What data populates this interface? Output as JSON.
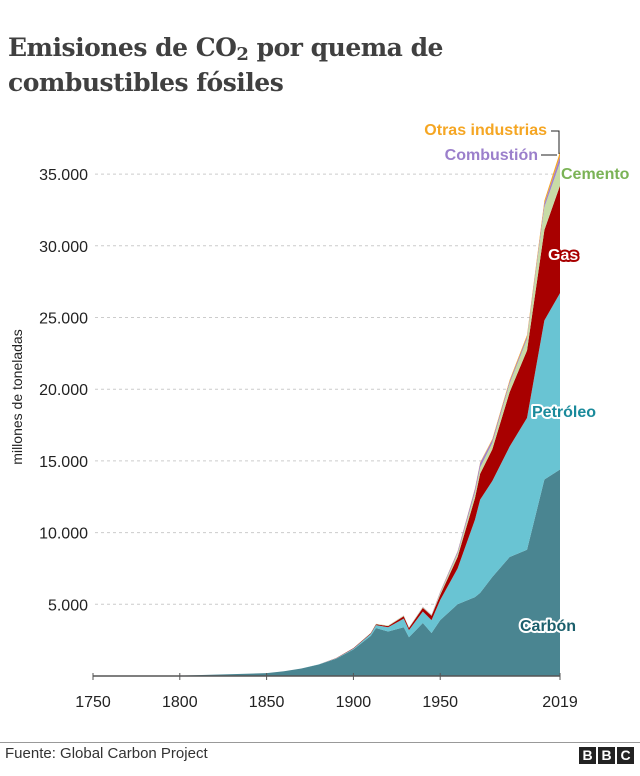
{
  "title": {
    "main": "Emisiones de CO",
    "sub": "2",
    "rest": " por quema de combustibles fósiles"
  },
  "footer": {
    "source": "Fuente: Global Carbon Project",
    "logo": "BBC"
  },
  "chart_data": {
    "type": "area",
    "stacked": true,
    "ylabel": "millones de toneladas",
    "xlabel": "",
    "xlim": [
      1750,
      2019
    ],
    "ylim": [
      0,
      36500
    ],
    "grid": true,
    "x_ticks": [
      "1750",
      "1800",
      "1850",
      "1900",
      "1950",
      "2019"
    ],
    "x_tick_values": [
      1750,
      1800,
      1850,
      1900,
      1950,
      2019
    ],
    "y_ticks": [
      "5.000",
      "10.000",
      "15.000",
      "20.000",
      "25.000",
      "30.000",
      "35.000"
    ],
    "y_tick_values": [
      5000,
      10000,
      15000,
      20000,
      25000,
      30000,
      35000
    ],
    "x": [
      1750,
      1800,
      1850,
      1860,
      1870,
      1880,
      1890,
      1900,
      1910,
      1913,
      1920,
      1929,
      1932,
      1940,
      1945,
      1950,
      1960,
      1970,
      1973,
      1980,
      1990,
      2000,
      2010,
      2019
    ],
    "series": [
      {
        "name": "Carbón",
        "color": "#4a8591",
        "values": [
          9,
          28,
          197,
          330,
          520,
          800,
          1200,
          1850,
          2800,
          3350,
          3100,
          3400,
          2700,
          3700,
          3000,
          3900,
          5000,
          5500,
          5800,
          6900,
          8300,
          8800,
          13700,
          14400
        ]
      },
      {
        "name": "Petróleo",
        "color": "#69c4d3",
        "values": [
          0,
          0,
          0,
          0,
          2,
          10,
          30,
          60,
          140,
          200,
          300,
          600,
          500,
          800,
          900,
          1400,
          2500,
          5400,
          6500,
          6700,
          7700,
          9200,
          11100,
          12300
        ]
      },
      {
        "name": "Gas",
        "color": "#a80000",
        "values": [
          0,
          0,
          0,
          0,
          0,
          5,
          15,
          30,
          50,
          60,
          80,
          170,
          150,
          250,
          300,
          350,
          800,
          1500,
          1800,
          2200,
          3800,
          4700,
          6300,
          7500
        ]
      },
      {
        "name": "Cemento",
        "color": "#c8dba6",
        "values": [
          0,
          0,
          0,
          0,
          0,
          0,
          0,
          5,
          20,
          30,
          40,
          50,
          40,
          60,
          50,
          140,
          250,
          400,
          450,
          450,
          600,
          800,
          1600,
          1600
        ]
      },
      {
        "name": "Combustión",
        "color": "#9f80cc",
        "values": [
          0,
          0,
          0,
          0,
          0,
          0,
          0,
          0,
          0,
          0,
          0,
          10,
          10,
          20,
          30,
          80,
          130,
          250,
          300,
          200,
          150,
          160,
          250,
          440
        ]
      },
      {
        "name": "Otras industrias",
        "color": "#f5a623",
        "values": [
          0,
          0,
          0,
          0,
          0,
          0,
          0,
          0,
          0,
          0,
          0,
          0,
          0,
          0,
          0,
          10,
          20,
          40,
          50,
          80,
          100,
          120,
          200,
          300
        ]
      }
    ],
    "label_colors": {
      "Carbón": "#1b5f6c",
      "Petróleo": "#1a8a9b",
      "Gas": "#ffffff",
      "Cemento": "#7bb356",
      "Combustión": "#9b7fcb",
      "Otras industrias": "#f5a623"
    }
  }
}
